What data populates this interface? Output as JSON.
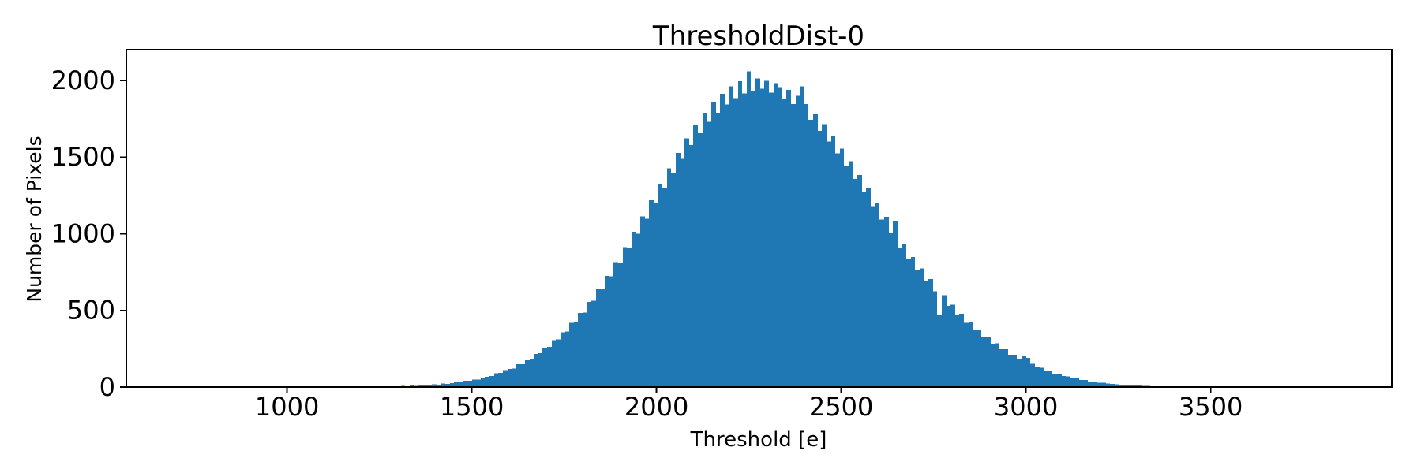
{
  "figure": {
    "background": "#ffffff",
    "text_color": "#000000",
    "axis_color": "#000000"
  },
  "chart_data": {
    "type": "bar",
    "subtype": "histogram",
    "title": "ThresholdDist-0",
    "xlabel": "Threshold [e]",
    "ylabel": "Number of Pixels",
    "xlim": [
      565,
      3990
    ],
    "ylim": [
      0,
      2200
    ],
    "x_tick_values": [
      1000,
      1500,
      2000,
      2500,
      3000,
      3500
    ],
    "x_tick_labels": [
      "1000",
      "1500",
      "2000",
      "2500",
      "3000",
      "3500"
    ],
    "y_tick_values": [
      0,
      500,
      1000,
      1500,
      2000
    ],
    "y_tick_labels": [
      "0",
      "500",
      "1000",
      "1500",
      "2000"
    ],
    "grid": false,
    "legend": null,
    "bar_color": "#1f77b4",
    "bin_start": 1152,
    "bin_width": 12,
    "counts": [
      1,
      0,
      2,
      1,
      1,
      3,
      1,
      2,
      3,
      2,
      5,
      4,
      5,
      7,
      6,
      9,
      8,
      11,
      12,
      13,
      17,
      16,
      22,
      21,
      26,
      31,
      30,
      40,
      41,
      50,
      49,
      62,
      68,
      71,
      90,
      92,
      110,
      119,
      122,
      148,
      150,
      176,
      182,
      216,
      220,
      255,
      261,
      306,
      310,
      357,
      362,
      420,
      424,
      484,
      486,
      556,
      562,
      638,
      640,
      725,
      722,
      815,
      810,
      912,
      905,
      1012,
      1000,
      1113,
      1098,
      1218,
      1198,
      1323,
      1297,
      1426,
      1395,
      1527,
      1487,
      1622,
      1577,
      1712,
      1655,
      1789,
      1730,
      1858,
      1788,
      1912,
      1843,
      1962,
      1884,
      1995,
      1914,
      2058,
      1930,
      2012,
      1945,
      1996,
      1920,
      1982,
      1956,
      1880,
      1938,
      1846,
      1900,
      1960,
      1845,
      1742,
      1782,
      1671,
      1713,
      1601,
      1638,
      1523,
      1556,
      1443,
      1472,
      1356,
      1383,
      1270,
      1295,
      1180,
      1200,
      1093,
      1111,
      1005,
      1085,
      905,
      934,
      838,
      848,
      760,
      774,
      692,
      703,
      625,
      470,
      600,
      530,
      537,
      473,
      478,
      419,
      423,
      370,
      373,
      325,
      327,
      283,
      285,
      246,
      247,
      211,
      212,
      180,
      205,
      190,
      152,
      128,
      127,
      106,
      105,
      88,
      86,
      71,
      70,
      57,
      56,
      45,
      45,
      36,
      35,
      28,
      27,
      22,
      21,
      17,
      16,
      13,
      13,
      10,
      9,
      8,
      7,
      6,
      5,
      4,
      4,
      3,
      3,
      3,
      2,
      2,
      2,
      1,
      2,
      1,
      1,
      2,
      0,
      1,
      1,
      1,
      0,
      1,
      1,
      0,
      1,
      0,
      1,
      0,
      1,
      0,
      1,
      1,
      0,
      1
    ]
  }
}
